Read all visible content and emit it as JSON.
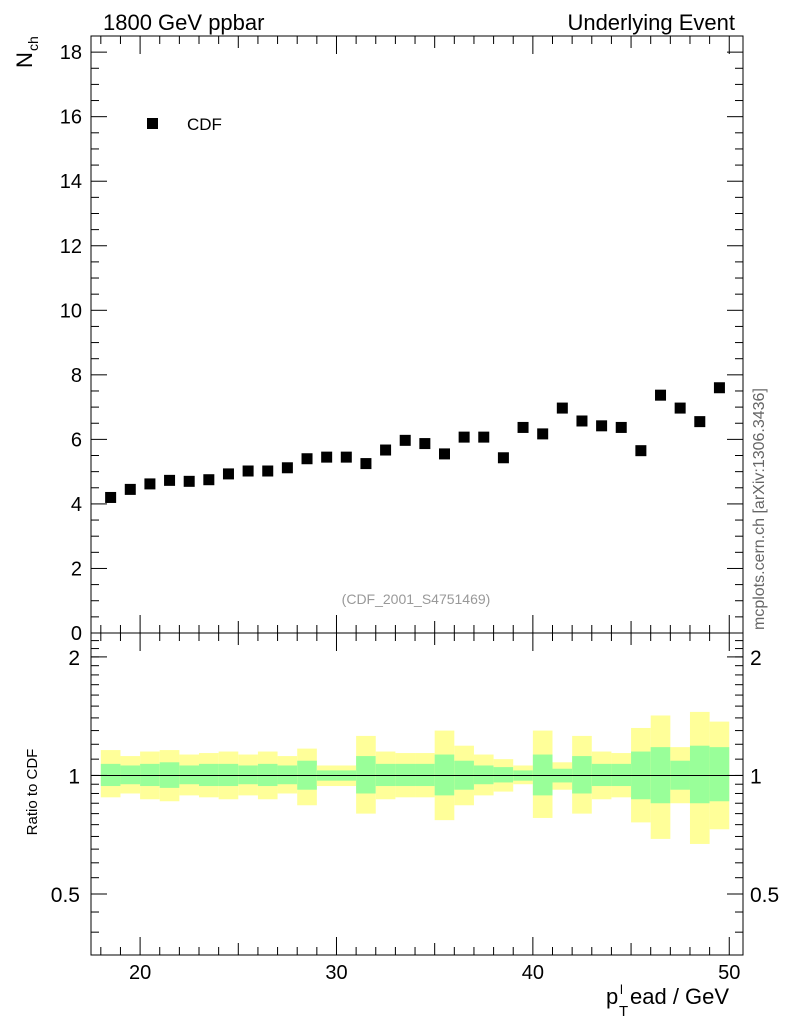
{
  "chart_data": [
    {
      "type": "scatter",
      "panel": "main",
      "title_left": "1800 GeV ppbar",
      "title_right": "Underlying Event",
      "ylabel_main": "N",
      "ylabel_sub": "ch",
      "ylim": [
        0,
        18.5
      ],
      "xlim": [
        17.5,
        50.7
      ],
      "yticks": [
        "0",
        "2",
        "4",
        "6",
        "8",
        "10",
        "12",
        "14",
        "16",
        "18"
      ],
      "legend": "CDF",
      "analysis_label": "(CDF_2001_S4751469)",
      "side_label": "mcplots.cern.ch [arXiv:1306.3436]",
      "series": [
        {
          "name": "CDF",
          "color": "#000000",
          "x": [
            18.5,
            19.5,
            20.5,
            21.5,
            22.5,
            23.5,
            24.5,
            25.5,
            26.5,
            27.5,
            28.5,
            29.5,
            30.5,
            31.5,
            32.5,
            33.5,
            34.5,
            35.5,
            36.5,
            37.5,
            38.5,
            39.5,
            40.5,
            41.5,
            42.5,
            43.5,
            44.5,
            45.5,
            46.5,
            47.5,
            48.5,
            49.5
          ],
          "y": [
            4.2,
            4.45,
            4.62,
            4.73,
            4.7,
            4.75,
            4.93,
            5.02,
            5.02,
            5.12,
            5.4,
            5.45,
            5.45,
            5.25,
            5.67,
            5.97,
            5.87,
            5.55,
            6.07,
            6.07,
            5.43,
            6.37,
            6.17,
            6.97,
            6.57,
            6.42,
            6.37,
            5.65,
            7.37,
            6.97,
            6.55,
            7.6
          ]
        }
      ]
    },
    {
      "type": "area",
      "panel": "ratio",
      "ylabel": "Ratio to CDF",
      "yscale": "log",
      "ylim": [
        0.35,
        2.3
      ],
      "xlim": [
        17.5,
        50.7
      ],
      "yticks": [
        "0.5",
        "1",
        "2"
      ],
      "xticks": [
        "20",
        "30",
        "40",
        "50"
      ],
      "xlabel_p": "p",
      "xlabel_sub": "T",
      "xlabel_sup": "l",
      "xlabel_rest": "ead / GeV",
      "reference_line": 1,
      "bins": [
        18,
        19,
        20,
        21,
        22,
        23,
        24,
        25,
        26,
        27,
        28,
        29,
        30,
        31,
        32,
        33,
        34,
        35,
        36,
        37,
        38,
        39,
        40,
        41,
        42,
        43,
        44,
        45,
        46,
        47,
        48,
        49,
        50
      ],
      "band_colors": {
        "outer": "#ffff99",
        "inner": "#99ff99",
        "line": "#000000"
      },
      "band_outer_lo": [
        0.88,
        0.9,
        0.87,
        0.86,
        0.89,
        0.88,
        0.87,
        0.89,
        0.87,
        0.9,
        0.84,
        0.94,
        0.94,
        0.8,
        0.87,
        0.88,
        0.88,
        0.77,
        0.84,
        0.89,
        0.91,
        0.95,
        0.78,
        0.92,
        0.8,
        0.87,
        0.88,
        0.76,
        0.69,
        0.85,
        0.67,
        0.73
      ],
      "band_outer_hi": [
        1.16,
        1.12,
        1.15,
        1.16,
        1.13,
        1.14,
        1.15,
        1.13,
        1.15,
        1.12,
        1.17,
        1.06,
        1.06,
        1.26,
        1.15,
        1.14,
        1.14,
        1.3,
        1.19,
        1.13,
        1.1,
        1.06,
        1.3,
        1.08,
        1.26,
        1.15,
        1.14,
        1.32,
        1.42,
        1.18,
        1.45,
        1.37
      ],
      "band_inner_lo": [
        0.94,
        0.95,
        0.94,
        0.93,
        0.95,
        0.94,
        0.94,
        0.95,
        0.94,
        0.95,
        0.92,
        0.97,
        0.97,
        0.9,
        0.94,
        0.94,
        0.94,
        0.89,
        0.92,
        0.95,
        0.96,
        0.97,
        0.89,
        0.96,
        0.9,
        0.94,
        0.94,
        0.87,
        0.85,
        0.92,
        0.85,
        0.86
      ],
      "band_inner_hi": [
        1.07,
        1.06,
        1.07,
        1.08,
        1.06,
        1.07,
        1.07,
        1.06,
        1.07,
        1.06,
        1.09,
        1.03,
        1.03,
        1.12,
        1.07,
        1.07,
        1.07,
        1.13,
        1.09,
        1.06,
        1.05,
        1.03,
        1.13,
        1.04,
        1.12,
        1.07,
        1.07,
        1.15,
        1.18,
        1.09,
        1.19,
        1.18
      ]
    }
  ]
}
